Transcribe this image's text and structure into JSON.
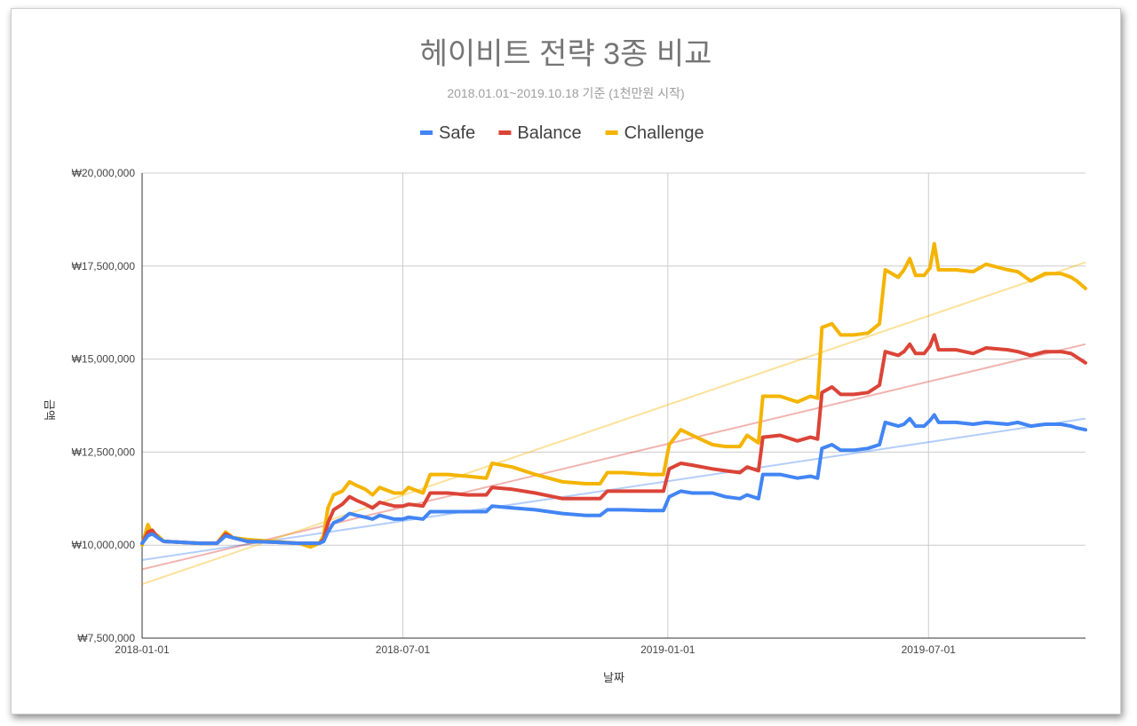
{
  "chart_data": {
    "type": "line",
    "title": "헤이비트 전략 3종 비교",
    "subtitle": "2018.01.01~2019.10.18 기준 (1천만원 시작)",
    "xlabel": "날짜",
    "ylabel": "금액",
    "ylim": [
      7500000,
      20000000
    ],
    "xlim": [
      "2018-01-01",
      "2019-10-18"
    ],
    "y_ticks": [
      7500000,
      10000000,
      12500000,
      15000000,
      17500000,
      20000000
    ],
    "y_tick_labels": [
      "₩7,500,000",
      "₩10,000,000",
      "₩12,500,000",
      "₩15,000,000",
      "₩17,500,000",
      "₩20,000,000"
    ],
    "x_ticks": [
      "2018-01-01",
      "2018-07-01",
      "2019-01-01",
      "2019-07-01"
    ],
    "x_tick_labels": [
      "2018-01-01",
      "2018-07-01",
      "2019-01-01",
      "2019-07-01"
    ],
    "grid": true,
    "legend_position": "top",
    "series": [
      {
        "name": "Safe",
        "color": "#4285f4",
        "points": [
          [
            "2018-01-01",
            10050000
          ],
          [
            "2018-01-05",
            10250000
          ],
          [
            "2018-01-08",
            10300000
          ],
          [
            "2018-01-12",
            10200000
          ],
          [
            "2018-01-16",
            10100000
          ],
          [
            "2018-01-25",
            10080000
          ],
          [
            "2018-02-10",
            10050000
          ],
          [
            "2018-02-22",
            10050000
          ],
          [
            "2018-02-28",
            10250000
          ],
          [
            "2018-03-05",
            10200000
          ],
          [
            "2018-03-15",
            10100000
          ],
          [
            "2018-04-01",
            10080000
          ],
          [
            "2018-04-20",
            10050000
          ],
          [
            "2018-05-04",
            10050000
          ],
          [
            "2018-05-07",
            10100000
          ],
          [
            "2018-05-10",
            10350000
          ],
          [
            "2018-05-14",
            10600000
          ],
          [
            "2018-05-20",
            10700000
          ],
          [
            "2018-05-25",
            10850000
          ],
          [
            "2018-05-30",
            10800000
          ],
          [
            "2018-06-05",
            10750000
          ],
          [
            "2018-06-10",
            10700000
          ],
          [
            "2018-06-15",
            10800000
          ],
          [
            "2018-06-25",
            10700000
          ],
          [
            "2018-07-01",
            10700000
          ],
          [
            "2018-07-05",
            10750000
          ],
          [
            "2018-07-15",
            10700000
          ],
          [
            "2018-07-20",
            10900000
          ],
          [
            "2018-08-01",
            10900000
          ],
          [
            "2018-08-15",
            10900000
          ],
          [
            "2018-08-28",
            10900000
          ],
          [
            "2018-09-01",
            11050000
          ],
          [
            "2018-09-15",
            11000000
          ],
          [
            "2018-10-01",
            10950000
          ],
          [
            "2018-10-20",
            10850000
          ],
          [
            "2018-11-05",
            10800000
          ],
          [
            "2018-11-15",
            10800000
          ],
          [
            "2018-11-20",
            10950000
          ],
          [
            "2018-12-01",
            10950000
          ],
          [
            "2018-12-20",
            10930000
          ],
          [
            "2018-12-29",
            10930000
          ],
          [
            "2019-01-02",
            11300000
          ],
          [
            "2019-01-10",
            11450000
          ],
          [
            "2019-01-18",
            11400000
          ],
          [
            "2019-02-01",
            11400000
          ],
          [
            "2019-02-10",
            11300000
          ],
          [
            "2019-02-20",
            11250000
          ],
          [
            "2019-02-25",
            11350000
          ],
          [
            "2019-03-05",
            11250000
          ],
          [
            "2019-03-08",
            11900000
          ],
          [
            "2019-03-20",
            11900000
          ],
          [
            "2019-04-01",
            11800000
          ],
          [
            "2019-04-10",
            11850000
          ],
          [
            "2019-04-15",
            11800000
          ],
          [
            "2019-04-18",
            12600000
          ],
          [
            "2019-04-25",
            12700000
          ],
          [
            "2019-05-01",
            12550000
          ],
          [
            "2019-05-10",
            12550000
          ],
          [
            "2019-05-20",
            12600000
          ],
          [
            "2019-05-28",
            12700000
          ],
          [
            "2019-06-01",
            13300000
          ],
          [
            "2019-06-10",
            13200000
          ],
          [
            "2019-06-14",
            13250000
          ],
          [
            "2019-06-18",
            13400000
          ],
          [
            "2019-06-22",
            13200000
          ],
          [
            "2019-06-28",
            13200000
          ],
          [
            "2019-07-02",
            13350000
          ],
          [
            "2019-07-05",
            13500000
          ],
          [
            "2019-07-08",
            13300000
          ],
          [
            "2019-07-20",
            13300000
          ],
          [
            "2019-08-01",
            13250000
          ],
          [
            "2019-08-10",
            13300000
          ],
          [
            "2019-08-25",
            13250000
          ],
          [
            "2019-09-01",
            13300000
          ],
          [
            "2019-09-10",
            13200000
          ],
          [
            "2019-09-20",
            13250000
          ],
          [
            "2019-10-01",
            13250000
          ],
          [
            "2019-10-08",
            13200000
          ],
          [
            "2019-10-12",
            13150000
          ],
          [
            "2019-10-18",
            13100000
          ]
        ],
        "trendline": [
          [
            "2018-01-01",
            9600000
          ],
          [
            "2019-10-18",
            13400000
          ]
        ]
      },
      {
        "name": "Balance",
        "color": "#db4437",
        "points": [
          [
            "2018-01-01",
            10050000
          ],
          [
            "2018-01-05",
            10350000
          ],
          [
            "2018-01-08",
            10400000
          ],
          [
            "2018-01-12",
            10200000
          ],
          [
            "2018-01-16",
            10100000
          ],
          [
            "2018-01-25",
            10080000
          ],
          [
            "2018-02-10",
            10050000
          ],
          [
            "2018-02-22",
            10050000
          ],
          [
            "2018-02-28",
            10300000
          ],
          [
            "2018-03-05",
            10200000
          ],
          [
            "2018-03-15",
            10100000
          ],
          [
            "2018-04-01",
            10080000
          ],
          [
            "2018-04-20",
            10050000
          ],
          [
            "2018-05-04",
            10050000
          ],
          [
            "2018-05-07",
            10150000
          ],
          [
            "2018-05-10",
            10600000
          ],
          [
            "2018-05-14",
            10950000
          ],
          [
            "2018-05-20",
            11100000
          ],
          [
            "2018-05-25",
            11300000
          ],
          [
            "2018-05-30",
            11200000
          ],
          [
            "2018-06-05",
            11100000
          ],
          [
            "2018-06-10",
            11000000
          ],
          [
            "2018-06-15",
            11150000
          ],
          [
            "2018-06-25",
            11050000
          ],
          [
            "2018-07-01",
            11050000
          ],
          [
            "2018-07-05",
            11100000
          ],
          [
            "2018-07-15",
            11050000
          ],
          [
            "2018-07-20",
            11400000
          ],
          [
            "2018-08-01",
            11400000
          ],
          [
            "2018-08-15",
            11350000
          ],
          [
            "2018-08-28",
            11350000
          ],
          [
            "2018-09-01",
            11550000
          ],
          [
            "2018-09-15",
            11500000
          ],
          [
            "2018-10-01",
            11400000
          ],
          [
            "2018-10-20",
            11250000
          ],
          [
            "2018-11-05",
            11250000
          ],
          [
            "2018-11-15",
            11250000
          ],
          [
            "2018-11-20",
            11450000
          ],
          [
            "2018-12-01",
            11450000
          ],
          [
            "2018-12-20",
            11450000
          ],
          [
            "2018-12-29",
            11450000
          ],
          [
            "2019-01-02",
            12050000
          ],
          [
            "2019-01-10",
            12200000
          ],
          [
            "2019-01-18",
            12150000
          ],
          [
            "2019-02-01",
            12050000
          ],
          [
            "2019-02-10",
            12000000
          ],
          [
            "2019-02-20",
            11950000
          ],
          [
            "2019-02-25",
            12100000
          ],
          [
            "2019-03-05",
            12000000
          ],
          [
            "2019-03-08",
            12900000
          ],
          [
            "2019-03-20",
            12950000
          ],
          [
            "2019-04-01",
            12800000
          ],
          [
            "2019-04-10",
            12900000
          ],
          [
            "2019-04-15",
            12850000
          ],
          [
            "2019-04-18",
            14100000
          ],
          [
            "2019-04-25",
            14250000
          ],
          [
            "2019-05-01",
            14050000
          ],
          [
            "2019-05-10",
            14050000
          ],
          [
            "2019-05-20",
            14100000
          ],
          [
            "2019-05-28",
            14300000
          ],
          [
            "2019-06-01",
            15200000
          ],
          [
            "2019-06-10",
            15100000
          ],
          [
            "2019-06-14",
            15200000
          ],
          [
            "2019-06-18",
            15400000
          ],
          [
            "2019-06-22",
            15150000
          ],
          [
            "2019-06-28",
            15150000
          ],
          [
            "2019-07-02",
            15350000
          ],
          [
            "2019-07-05",
            15650000
          ],
          [
            "2019-07-08",
            15250000
          ],
          [
            "2019-07-20",
            15250000
          ],
          [
            "2019-08-01",
            15150000
          ],
          [
            "2019-08-10",
            15300000
          ],
          [
            "2019-08-25",
            15250000
          ],
          [
            "2019-09-01",
            15200000
          ],
          [
            "2019-09-10",
            15100000
          ],
          [
            "2019-09-20",
            15200000
          ],
          [
            "2019-10-01",
            15200000
          ],
          [
            "2019-10-08",
            15150000
          ],
          [
            "2019-10-12",
            15050000
          ],
          [
            "2019-10-18",
            14900000
          ]
        ],
        "trendline": [
          [
            "2018-01-01",
            9350000
          ],
          [
            "2019-10-18",
            15400000
          ]
        ]
      },
      {
        "name": "Challenge",
        "color": "#f4b400",
        "points": [
          [
            "2018-01-01",
            10000000
          ],
          [
            "2018-01-05",
            10550000
          ],
          [
            "2018-01-08",
            10300000
          ],
          [
            "2018-01-12",
            10250000
          ],
          [
            "2018-01-16",
            10100000
          ],
          [
            "2018-01-25",
            10080000
          ],
          [
            "2018-02-10",
            10050000
          ],
          [
            "2018-02-22",
            10050000
          ],
          [
            "2018-02-28",
            10350000
          ],
          [
            "2018-03-05",
            10200000
          ],
          [
            "2018-03-15",
            10150000
          ],
          [
            "2018-04-01",
            10100000
          ],
          [
            "2018-04-20",
            10050000
          ],
          [
            "2018-04-28",
            9950000
          ],
          [
            "2018-05-04",
            10050000
          ],
          [
            "2018-05-07",
            10250000
          ],
          [
            "2018-05-10",
            11000000
          ],
          [
            "2018-05-14",
            11350000
          ],
          [
            "2018-05-20",
            11450000
          ],
          [
            "2018-05-25",
            11700000
          ],
          [
            "2018-05-30",
            11600000
          ],
          [
            "2018-06-05",
            11500000
          ],
          [
            "2018-06-10",
            11350000
          ],
          [
            "2018-06-15",
            11550000
          ],
          [
            "2018-06-25",
            11400000
          ],
          [
            "2018-07-01",
            11400000
          ],
          [
            "2018-07-05",
            11550000
          ],
          [
            "2018-07-15",
            11400000
          ],
          [
            "2018-07-20",
            11900000
          ],
          [
            "2018-08-01",
            11900000
          ],
          [
            "2018-08-15",
            11850000
          ],
          [
            "2018-08-28",
            11800000
          ],
          [
            "2018-09-01",
            12200000
          ],
          [
            "2018-09-15",
            12100000
          ],
          [
            "2018-10-01",
            11900000
          ],
          [
            "2018-10-20",
            11700000
          ],
          [
            "2018-11-05",
            11650000
          ],
          [
            "2018-11-15",
            11650000
          ],
          [
            "2018-11-20",
            11950000
          ],
          [
            "2018-12-01",
            11950000
          ],
          [
            "2018-12-20",
            11900000
          ],
          [
            "2018-12-29",
            11900000
          ],
          [
            "2019-01-02",
            12700000
          ],
          [
            "2019-01-10",
            13100000
          ],
          [
            "2019-01-18",
            12950000
          ],
          [
            "2019-02-01",
            12700000
          ],
          [
            "2019-02-10",
            12650000
          ],
          [
            "2019-02-20",
            12650000
          ],
          [
            "2019-02-25",
            12950000
          ],
          [
            "2019-03-05",
            12750000
          ],
          [
            "2019-03-08",
            14000000
          ],
          [
            "2019-03-20",
            14000000
          ],
          [
            "2019-04-01",
            13850000
          ],
          [
            "2019-04-10",
            14000000
          ],
          [
            "2019-04-15",
            13950000
          ],
          [
            "2019-04-18",
            15850000
          ],
          [
            "2019-04-25",
            15950000
          ],
          [
            "2019-05-01",
            15650000
          ],
          [
            "2019-05-10",
            15650000
          ],
          [
            "2019-05-20",
            15700000
          ],
          [
            "2019-05-28",
            15950000
          ],
          [
            "2019-06-01",
            17400000
          ],
          [
            "2019-06-10",
            17200000
          ],
          [
            "2019-06-14",
            17400000
          ],
          [
            "2019-06-18",
            17700000
          ],
          [
            "2019-06-22",
            17250000
          ],
          [
            "2019-06-28",
            17250000
          ],
          [
            "2019-07-02",
            17450000
          ],
          [
            "2019-07-05",
            18100000
          ],
          [
            "2019-07-08",
            17400000
          ],
          [
            "2019-07-20",
            17400000
          ],
          [
            "2019-08-01",
            17350000
          ],
          [
            "2019-08-10",
            17550000
          ],
          [
            "2019-08-25",
            17400000
          ],
          [
            "2019-09-01",
            17350000
          ],
          [
            "2019-09-10",
            17100000
          ],
          [
            "2019-09-20",
            17300000
          ],
          [
            "2019-10-01",
            17300000
          ],
          [
            "2019-10-08",
            17200000
          ],
          [
            "2019-10-12",
            17100000
          ],
          [
            "2019-10-18",
            16900000
          ]
        ],
        "trendline": [
          [
            "2018-01-01",
            8950000
          ],
          [
            "2019-10-18",
            17600000
          ]
        ]
      }
    ]
  }
}
